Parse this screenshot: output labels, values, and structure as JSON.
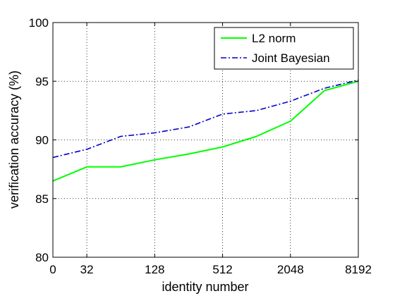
{
  "chart_data": {
    "type": "line",
    "title": "",
    "xlabel": "identity number",
    "ylabel": "verification accuracy (%)",
    "x_tick_positions": [
      0,
      1,
      3,
      5,
      7,
      9
    ],
    "x_tick_labels": [
      "0",
      "32",
      "128",
      "512",
      "2048",
      "8192"
    ],
    "xlim": [
      0,
      9
    ],
    "ylim": [
      80,
      100
    ],
    "y_ticks": [
      80,
      85,
      90,
      95,
      100
    ],
    "grid": true,
    "legend_position": "top-right",
    "series": [
      {
        "name": "L2 norm",
        "color": "#00ff00",
        "line_style": "solid",
        "x": [
          0,
          1,
          2,
          3,
          4,
          5,
          6,
          7,
          8,
          9
        ],
        "values": [
          86.5,
          87.7,
          87.7,
          88.3,
          88.8,
          89.4,
          90.3,
          91.6,
          94.2,
          95.0
        ]
      },
      {
        "name": "Joint Bayesian",
        "color": "#0000cc",
        "line_style": "dash-dot",
        "x": [
          0,
          1,
          2,
          3,
          4,
          5,
          6,
          7,
          8,
          9
        ],
        "values": [
          88.5,
          89.2,
          90.3,
          90.6,
          91.1,
          92.2,
          92.5,
          93.3,
          94.4,
          95.1
        ]
      }
    ]
  }
}
